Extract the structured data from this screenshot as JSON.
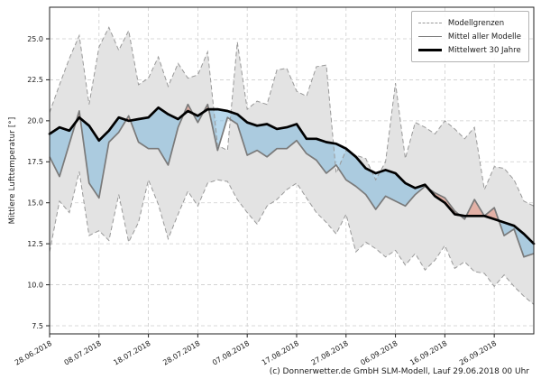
{
  "figure": {
    "y_axis_label": "Mittlere Lufttemperatur [°]",
    "caption": "(c) Donnerwetter.de GmbH SLM-Modell, Lauf 29.06.2018 00 Uhr",
    "legend": [
      {
        "label": "Modellgrenzen",
        "style": "dashed-gray"
      },
      {
        "label": "Mittel aller Modelle",
        "style": "solid-gray"
      },
      {
        "label": "Mittelwert 30 Jahre",
        "style": "solid-black-thick"
      }
    ]
  },
  "chart_data": {
    "type": "line",
    "title": "",
    "xlabel": "",
    "ylabel": "Mittlere Lufttemperatur [°]",
    "ylim": [
      7.0,
      26.9
    ],
    "grid": true,
    "legend_position": "upper right",
    "y_ticks": [
      7.5,
      10.0,
      12.5,
      15.0,
      17.5,
      20.0,
      22.5,
      25.0
    ],
    "x_tick_labels": [
      "28.06.2018",
      "08.07.2018",
      "18.07.2018",
      "28.07.2018",
      "07.08.2018",
      "17.08.2018",
      "27.08.2018",
      "06.09.2018",
      "16.09.2018",
      "26.09.2018"
    ],
    "x_tick_indices": [
      0,
      5,
      10,
      15,
      20,
      25,
      30,
      35,
      40,
      45
    ],
    "dates": [
      "28.06.",
      "30.06.",
      "02.07.",
      "04.07.",
      "06.07.",
      "08.07.",
      "10.07.",
      "12.07.",
      "14.07.",
      "16.07.",
      "18.07.",
      "20.07.",
      "22.07.",
      "24.07.",
      "26.07.",
      "28.07.",
      "30.07.",
      "01.08.",
      "03.08.",
      "05.08.",
      "07.08.",
      "09.08.",
      "11.08.",
      "13.08.",
      "15.08.",
      "17.08.",
      "19.08.",
      "21.08.",
      "23.08.",
      "25.08.",
      "27.08.",
      "29.08.",
      "31.08.",
      "02.09.",
      "04.09.",
      "06.09.",
      "08.09.",
      "10.09.",
      "12.09.",
      "14.09.",
      "16.09.",
      "18.09.",
      "20.09.",
      "22.09.",
      "24.09.",
      "26.09.",
      "28.09.",
      "30.09.",
      "02.10.",
      "04.10."
    ],
    "series": [
      {
        "name": "Modellgrenzen (oberes Limit)",
        "style": "dashed",
        "color": "#999999",
        "values": [
          20.5,
          22.2,
          23.8,
          25.2,
          21.0,
          24.5,
          25.7,
          24.3,
          25.5,
          22.2,
          22.6,
          23.9,
          22.1,
          23.5,
          22.6,
          22.8,
          24.2,
          18.5,
          18.2,
          24.8,
          20.7,
          21.2,
          21.0,
          23.1,
          23.2,
          21.8,
          21.5,
          23.3,
          23.4,
          16.8,
          18.2,
          17.9,
          17.7,
          16.4,
          17.5,
          22.3,
          17.7,
          19.9,
          19.6,
          19.2,
          20.0,
          19.5,
          18.9,
          19.6,
          15.8,
          17.2,
          17.1,
          16.4,
          15.1,
          14.8
        ]
      },
      {
        "name": "Modellgrenzen (unteres Limit)",
        "style": "dashed",
        "color": "#999999",
        "values": [
          12.0,
          15.1,
          14.4,
          16.9,
          13.0,
          13.3,
          12.7,
          15.5,
          12.6,
          13.8,
          16.4,
          14.9,
          12.8,
          14.3,
          15.7,
          14.8,
          16.2,
          16.4,
          16.3,
          15.2,
          14.4,
          13.7,
          14.8,
          15.2,
          15.8,
          16.2,
          15.3,
          14.4,
          13.8,
          13.1,
          14.3,
          12.0,
          12.6,
          12.2,
          11.7,
          12.1,
          11.2,
          11.9,
          10.9,
          11.5,
          12.4,
          11.0,
          11.4,
          10.8,
          10.7,
          9.9,
          10.6,
          9.9,
          9.3,
          8.8
        ]
      },
      {
        "name": "Mittel aller Modelle",
        "style": "solid",
        "color": "#7a7a7a",
        "values": [
          17.8,
          16.6,
          18.6,
          20.6,
          16.2,
          15.3,
          18.7,
          19.3,
          20.3,
          18.7,
          18.3,
          18.3,
          17.3,
          19.6,
          21.0,
          19.9,
          21.0,
          18.2,
          20.2,
          19.8,
          17.9,
          18.2,
          17.8,
          18.3,
          18.3,
          18.8,
          18.0,
          17.6,
          16.8,
          17.3,
          16.4,
          16.0,
          15.5,
          14.6,
          15.4,
          15.1,
          14.8,
          15.5,
          16.0,
          15.6,
          15.3,
          14.5,
          14.0,
          15.2,
          14.2,
          14.7,
          13.0,
          13.4,
          11.7,
          11.9
        ]
      },
      {
        "name": "Mittelwert 30 Jahre",
        "style": "solid-thick",
        "color": "#000000",
        "values": [
          19.2,
          19.6,
          19.4,
          20.2,
          19.7,
          18.8,
          19.4,
          20.2,
          20.0,
          20.1,
          20.2,
          20.8,
          20.4,
          20.1,
          20.6,
          20.3,
          20.7,
          20.7,
          20.6,
          20.4,
          19.9,
          19.7,
          19.8,
          19.5,
          19.6,
          19.8,
          18.9,
          18.9,
          18.7,
          18.6,
          18.3,
          17.8,
          17.1,
          16.8,
          17.0,
          16.8,
          16.2,
          15.9,
          16.1,
          15.4,
          15.0,
          14.3,
          14.2,
          14.2,
          14.2,
          14.0,
          13.8,
          13.6,
          13.1,
          12.5
        ]
      }
    ],
    "fills": {
      "model_range_band": "#e3e3e3",
      "below_normal_blue": "#74b4dc",
      "above_normal_red": "#e2745a"
    }
  }
}
